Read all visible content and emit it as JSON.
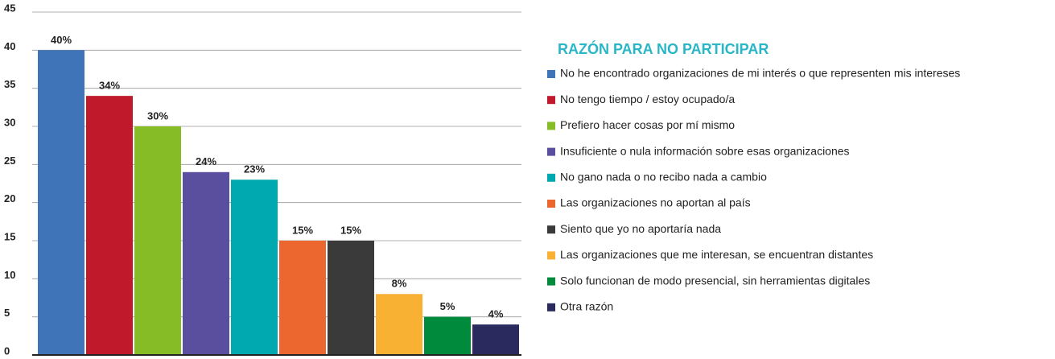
{
  "chart_data": {
    "type": "bar",
    "legend_title": "RAZÓN PARA NO PARTICIPAR",
    "categories": [
      "No he encontrado organizaciones de mi interés o que representen mis intereses",
      "No tengo tiempo / estoy ocupado/a",
      "Prefiero hacer cosas por mí mismo",
      "Insuficiente o nula información sobre esas organizaciones",
      "No gano nada o no recibo nada a cambio",
      "Las organizaciones no aportan al país",
      "Siento que yo no aportaría nada",
      "Las organizaciones que me interesan, se encuentran distantes",
      "Solo funcionan de modo presencial, sin herramientas digitales",
      "Otra razón"
    ],
    "values": [
      40,
      34,
      30,
      24,
      23,
      15,
      15,
      8,
      5,
      4
    ],
    "value_labels": [
      "40%",
      "34%",
      "30%",
      "24%",
      "23%",
      "15%",
      "15%",
      "8%",
      "5%",
      "4%"
    ],
    "colors": [
      "#3f74b9",
      "#c0192b",
      "#86bc25",
      "#5a4f9e",
      "#00a9b0",
      "#ec6730",
      "#3a3a3a",
      "#f8b133",
      "#008a3c",
      "#2b2a5f"
    ],
    "ylim": [
      0,
      45
    ],
    "yticks": [
      0,
      5,
      10,
      15,
      20,
      25,
      30,
      35,
      40,
      45
    ],
    "grid": true,
    "legend": "right"
  }
}
